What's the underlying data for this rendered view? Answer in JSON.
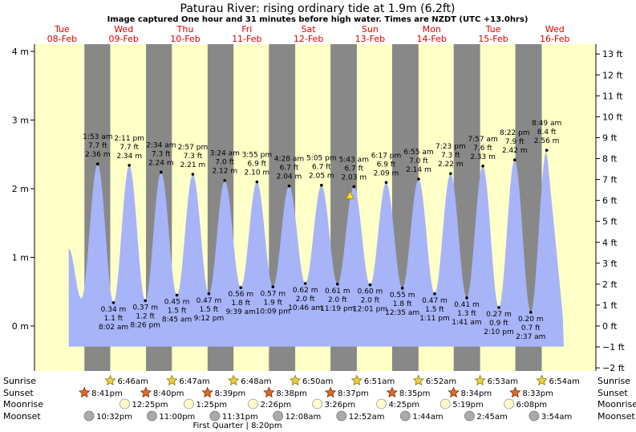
{
  "title": "Paturau River: rising  ordinary tide at 1.9m (6.2ft)",
  "subtitle": "Image captured One hour and 31 minutes before high water. Times are NZDT (UTC +13.0hrs)",
  "days": [
    {
      "dow": "Tue",
      "date": "08-Feb"
    },
    {
      "dow": "Wed",
      "date": "09-Feb"
    },
    {
      "dow": "Thu",
      "date": "10-Feb"
    },
    {
      "dow": "Fri",
      "date": "11-Feb"
    },
    {
      "dow": "Sat",
      "date": "12-Feb"
    },
    {
      "dow": "Sun",
      "date": "13-Feb"
    },
    {
      "dow": "Mon",
      "date": "14-Feb"
    },
    {
      "dow": "Tue",
      "date": "15-Feb"
    },
    {
      "dow": "Wed",
      "date": "16-Feb"
    }
  ],
  "colors": {
    "day": "#ffffc8",
    "night": "#888888",
    "water": "#a8b4f8",
    "day_label": "#e00000",
    "marker": "#ffdd33"
  },
  "rows": {
    "sunrise_label": "Sunrise",
    "sunset_label": "Sunset",
    "moonrise_label": "Moonrise",
    "moonset_label": "Moonset",
    "sunrise": [
      "6:46am",
      "6:47am",
      "6:48am",
      "6:50am",
      "6:51am",
      "6:52am",
      "6:53am",
      "6:54am"
    ],
    "sunset": [
      "8:41pm",
      "8:40pm",
      "8:39pm",
      "8:38pm",
      "8:37pm",
      "8:35pm",
      "8:34pm",
      "8:33pm"
    ],
    "moonrise": [
      "12:25pm",
      "1:25pm",
      "2:26pm",
      "3:26pm",
      "4:25pm",
      "5:19pm",
      "6:08pm"
    ],
    "moonset": [
      "10:32pm",
      "11:00pm",
      "11:31pm",
      "12:08am",
      "12:52am",
      "1:44am",
      "2:45am",
      "3:54am"
    ],
    "moon_phase": "First Quarter | 8:20pm"
  },
  "chart_data": {
    "type": "area",
    "ylabel_left_unit": "m",
    "ylabel_right_unit": "ft",
    "ylim_m": [
      -0.6,
      4.0
    ],
    "yticks_m": [
      "4 m",
      "3 m",
      "2 m",
      "1 m",
      "0 m"
    ],
    "yticks_ft": [
      "13 ft",
      "12 ft",
      "11 ft",
      "10 ft",
      "9 ft",
      "8 ft",
      "7 ft",
      "6 ft",
      "5 ft",
      "4 ft",
      "3 ft",
      "2 ft",
      "1 ft",
      "0 ft",
      "−1 ft",
      "−2 ft"
    ],
    "current": {
      "height_m": 1.9,
      "label": "rising"
    },
    "highs": [
      {
        "time": "1:53 am",
        "ft": "7.7 ft",
        "m": "2.36 m",
        "value": 2.36
      },
      {
        "time": "2:11 pm",
        "ft": "7.7 ft",
        "m": "2.34 m",
        "value": 2.34
      },
      {
        "time": "2:34 am",
        "ft": "7.3 ft",
        "m": "2.24 m",
        "value": 2.24
      },
      {
        "time": "2:57 pm",
        "ft": "7.3 ft",
        "m": "2.21 m",
        "value": 2.21
      },
      {
        "time": "3:24 am",
        "ft": "7.0 ft",
        "m": "2.12 m",
        "value": 2.12
      },
      {
        "time": "3:55 pm",
        "ft": "6.9 ft",
        "m": "2.10 m",
        "value": 2.1
      },
      {
        "time": "4:28 am",
        "ft": "6.7 ft",
        "m": "2.04 m",
        "value": 2.04
      },
      {
        "time": "5:05 pm",
        "ft": "6.7 ft",
        "m": "2.05 m",
        "value": 2.05
      },
      {
        "time": "5:43 am",
        "ft": "6.7 ft",
        "m": "2.03 m",
        "value": 2.03
      },
      {
        "time": "6:17 pm",
        "ft": "6.9 ft",
        "m": "2.09 m",
        "value": 2.09
      },
      {
        "time": "6:55 am",
        "ft": "7.0 ft",
        "m": "2.14 m",
        "value": 2.14
      },
      {
        "time": "7:23 pm",
        "ft": "7.3 ft",
        "m": "2.22 m",
        "value": 2.22
      },
      {
        "time": "7:57 am",
        "ft": "7.6 ft",
        "m": "2.33 m",
        "value": 2.33
      },
      {
        "time": "8:22 pm",
        "ft": "7.9 ft",
        "m": "2.42 m",
        "value": 2.42
      },
      {
        "time": "8:49 am",
        "ft": "8.4 ft",
        "m": "2.56 m",
        "value": 2.56
      }
    ],
    "lows": [
      {
        "time": "8:02 am",
        "ft": "1.1 ft",
        "m": "0.34 m",
        "value": 0.34
      },
      {
        "time": "8:26 pm",
        "ft": "1.2 ft",
        "m": "0.37 m",
        "value": 0.37
      },
      {
        "time": "8:45 am",
        "ft": "1.5 ft",
        "m": "0.45 m",
        "value": 0.45
      },
      {
        "time": "9:12 pm",
        "ft": "1.5 ft",
        "m": "0.47 m",
        "value": 0.47
      },
      {
        "time": "9:39 am",
        "ft": "1.8 ft",
        "m": "0.56 m",
        "value": 0.56
      },
      {
        "time": "10:09 pm",
        "ft": "1.9 ft",
        "m": "0.57 m",
        "value": 0.57
      },
      {
        "time": "10:46 am",
        "ft": "2.0 ft",
        "m": "0.62 m",
        "value": 0.62
      },
      {
        "time": "11:19 pm",
        "ft": "2.0 ft",
        "m": "0.61 m",
        "value": 0.61
      },
      {
        "time": "12:01 pm",
        "ft": "2.0 ft",
        "m": "0.60 m",
        "value": 0.6
      },
      {
        "time": "12:35 am",
        "ft": "1.8 ft",
        "m": "0.55 m",
        "value": 0.55
      },
      {
        "time": "1:11 pm",
        "ft": "1.5 ft",
        "m": "0.47 m",
        "value": 0.47
      },
      {
        "time": "1:41 am",
        "ft": "1.3 ft",
        "m": "0.41 m",
        "value": 0.41
      },
      {
        "time": "2:10 pm",
        "ft": "0.9 ft",
        "m": "0.27 m",
        "value": 0.27
      },
      {
        "time": "2:37 am",
        "ft": "0.7 ft",
        "m": "0.20 m",
        "value": 0.2
      }
    ]
  }
}
